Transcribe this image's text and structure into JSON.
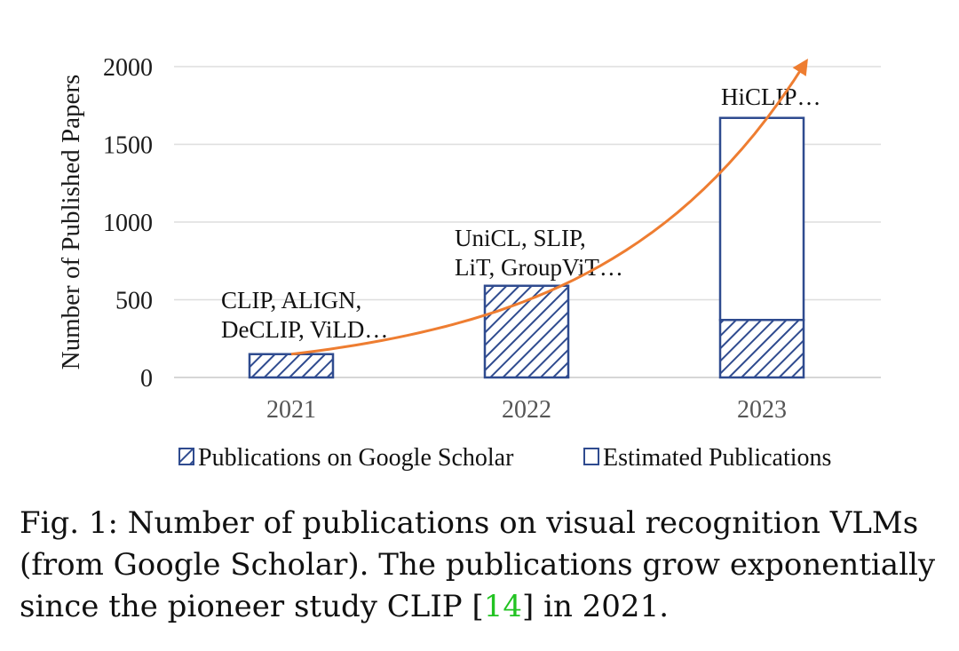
{
  "chart_data": {
    "type": "bar",
    "stacked": true,
    "categories": [
      "2021",
      "2022",
      "2023"
    ],
    "series": [
      {
        "name": "Publications on Google Scholar",
        "values": [
          150,
          590,
          370
        ],
        "pattern": "diagonal-hatch",
        "color": "#2f4b8f"
      },
      {
        "name": "Estimated Publications",
        "values": [
          0,
          0,
          1300
        ],
        "pattern": "none",
        "color": "#2f4b8f"
      }
    ],
    "annotations": [
      {
        "category": "2021",
        "lines": [
          "CLIP, ALIGN,",
          "DeCLIP, ViLD…"
        ]
      },
      {
        "category": "2022",
        "lines": [
          "UniCL, SLIP,",
          "LiT, GroupViT…"
        ]
      },
      {
        "category": "2023",
        "lines": [
          "HiCLIP…"
        ]
      }
    ],
    "trend_arrow": {
      "color": "#ee7d31",
      "description": "exponential growth"
    },
    "xlabel": "",
    "ylabel": "Number of Published Papers",
    "ylim": [
      0,
      2000
    ],
    "yticks": [
      0,
      500,
      1000,
      1500,
      2000
    ],
    "grid": true,
    "legend_position": "bottom"
  },
  "caption": {
    "line1": "Fig. 1: Number of publications on visual recognition VLMs",
    "line2": "(from Google Scholar). The publications grow exponentially",
    "line3_prefix": "since the pioneer study CLIP [",
    "line3_ref": "14",
    "line3_suffix": "] in 2021.",
    "ref_color": "#22c322"
  }
}
